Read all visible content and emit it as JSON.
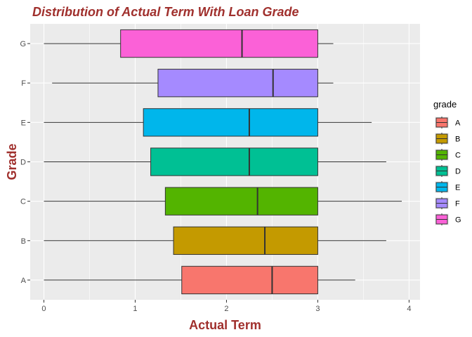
{
  "chart_data": {
    "type": "boxplot",
    "orientation": "horizontal",
    "title": "Distribution of Actual Term With Loan Grade",
    "xlabel": "Actual Term",
    "ylabel": "Grade",
    "xlim": [
      -0.15,
      4.12
    ],
    "x_ticks": [
      0,
      1,
      2,
      3,
      4
    ],
    "x_tick_labels": [
      "0",
      "1",
      "2",
      "3",
      "4"
    ],
    "categories": [
      "A",
      "B",
      "C",
      "D",
      "E",
      "F",
      "G"
    ],
    "grid": true,
    "legend": {
      "title": "grade",
      "position": "right",
      "entries": [
        "A",
        "B",
        "C",
        "D",
        "E",
        "F",
        "G"
      ]
    },
    "series": [
      {
        "name": "A",
        "color": "#F8766D",
        "whisker_low": 0.0,
        "q1": 1.51,
        "median": 2.5,
        "q3": 3.0,
        "whisker_high": 3.41
      },
      {
        "name": "B",
        "color": "#C49A00",
        "whisker_low": 0.0,
        "q1": 1.42,
        "median": 2.42,
        "q3": 3.0,
        "whisker_high": 3.75
      },
      {
        "name": "C",
        "color": "#53B400",
        "whisker_low": 0.0,
        "q1": 1.33,
        "median": 2.34,
        "q3": 3.0,
        "whisker_high": 3.92
      },
      {
        "name": "D",
        "color": "#00C094",
        "whisker_low": 0.0,
        "q1": 1.17,
        "median": 2.25,
        "q3": 3.0,
        "whisker_high": 3.75
      },
      {
        "name": "E",
        "color": "#00B6EB",
        "whisker_low": 0.0,
        "q1": 1.09,
        "median": 2.25,
        "q3": 3.0,
        "whisker_high": 3.59
      },
      {
        "name": "F",
        "color": "#A58AFF",
        "whisker_low": 0.09,
        "q1": 1.25,
        "median": 2.51,
        "q3": 3.0,
        "whisker_high": 3.17
      },
      {
        "name": "G",
        "color": "#FB61D7",
        "whisker_low": 0.0,
        "q1": 0.84,
        "median": 2.17,
        "q3": 3.0,
        "whisker_high": 3.17
      }
    ],
    "colors": {
      "panel_background": "#EBEBEB",
      "grid_major": "#FFFFFF",
      "title_color": "#A0302D",
      "axis_title_color": "#A0302D",
      "tick_color": "#4D4D4D"
    }
  }
}
